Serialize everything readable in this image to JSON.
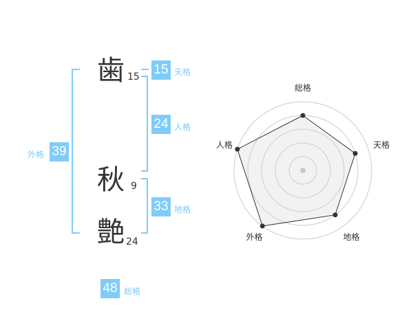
{
  "name": {
    "chars": [
      {
        "char": "歯",
        "strokes": "15"
      },
      {
        "char": "秋",
        "strokes": "9"
      },
      {
        "char": "艶",
        "strokes": "24"
      }
    ]
  },
  "kaku": {
    "tenkaku": {
      "label": "天格",
      "value": "15"
    },
    "jinkaku": {
      "label": "人格",
      "value": "24"
    },
    "chikaku": {
      "label": "地格",
      "value": "33"
    },
    "gaikaku": {
      "label": "外格",
      "value": "39"
    },
    "soukaku": {
      "label": "総格",
      "value": "48"
    }
  },
  "colors": {
    "accent": "#80ccf8",
    "fill": "#f2f2f2",
    "line": "#333333",
    "ring": "#cccccc"
  },
  "chart_data": {
    "type": "radar",
    "axes": [
      "総格",
      "天格",
      "地格",
      "外格",
      "人格"
    ],
    "values": [
      4,
      4,
      4,
      5,
      5
    ],
    "range": [
      0,
      5
    ],
    "rings": 5
  }
}
